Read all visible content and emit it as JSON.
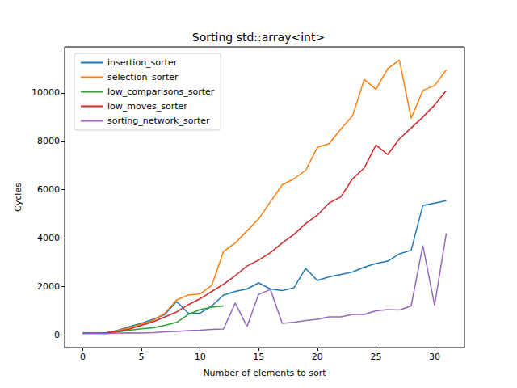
{
  "chart_data": {
    "type": "line",
    "title": "Sorting std::array<int>",
    "x_label": "Number of elements to sort",
    "y_label": "Cycles",
    "x": [
      0,
      1,
      2,
      3,
      4,
      5,
      6,
      7,
      8,
      9,
      10,
      11,
      12,
      13,
      14,
      15,
      16,
      17,
      18,
      19,
      20,
      21,
      22,
      23,
      24,
      25,
      26,
      27,
      28,
      29,
      30,
      31
    ],
    "series": [
      {
        "name": "insertion_sorter",
        "color": "#1f77b4",
        "values": [
          80,
          70,
          90,
          200,
          350,
          480,
          650,
          850,
          1380,
          900,
          900,
          1200,
          1650,
          1800,
          1900,
          2150,
          1900,
          1830,
          1950,
          2750,
          2250,
          2400,
          2500,
          2600,
          2800,
          2950,
          3050,
          3350,
          3500,
          5350,
          5450,
          5550
        ]
      },
      {
        "name": "selection_sorter",
        "color": "#ff7f0e",
        "values": [
          80,
          70,
          80,
          180,
          300,
          450,
          600,
          900,
          1450,
          1650,
          1700,
          2050,
          3450,
          3800,
          4300,
          4800,
          5500,
          6200,
          6450,
          6800,
          7750,
          7900,
          8500,
          9050,
          10550,
          10150,
          11000,
          11350,
          8950,
          10100,
          10300,
          10950
        ]
      },
      {
        "name": "low_comparisons_sorter",
        "color": "#2ca02c",
        "values": [
          80,
          70,
          80,
          130,
          200,
          260,
          300,
          400,
          520,
          850,
          1050,
          1150,
          1200,
          null,
          null,
          null,
          null,
          null,
          null,
          null,
          null,
          null,
          null,
          null,
          null,
          null,
          null,
          null,
          null,
          null,
          null,
          null
        ]
      },
      {
        "name": "low_moves_sorter",
        "color": "#d62728",
        "values": [
          80,
          70,
          90,
          150,
          250,
          400,
          550,
          750,
          950,
          1250,
          1500,
          1800,
          2100,
          2450,
          2850,
          3100,
          3400,
          3800,
          4150,
          4600,
          4950,
          5450,
          5700,
          6450,
          6900,
          7850,
          7450,
          8100,
          8550,
          9000,
          9500,
          10100
        ]
      },
      {
        "name": "sorting_network_sorter",
        "color": "#9467bd",
        "values": [
          60,
          60,
          60,
          80,
          90,
          80,
          100,
          130,
          150,
          180,
          200,
          230,
          250,
          1320,
          350,
          1680,
          1880,
          480,
          520,
          600,
          650,
          750,
          750,
          850,
          850,
          1000,
          1050,
          1030,
          1200,
          3700,
          1230,
          4200
        ]
      }
    ],
    "xlim": [
      -1.55,
      32.55
    ],
    "xticks": [
      0,
      5,
      10,
      15,
      20,
      25,
      30
    ],
    "ylim": [
      -520,
      11900
    ],
    "yticks": [
      0,
      2000,
      4000,
      6000,
      8000,
      10000
    ],
    "grid": false,
    "legend": "upper left"
  }
}
